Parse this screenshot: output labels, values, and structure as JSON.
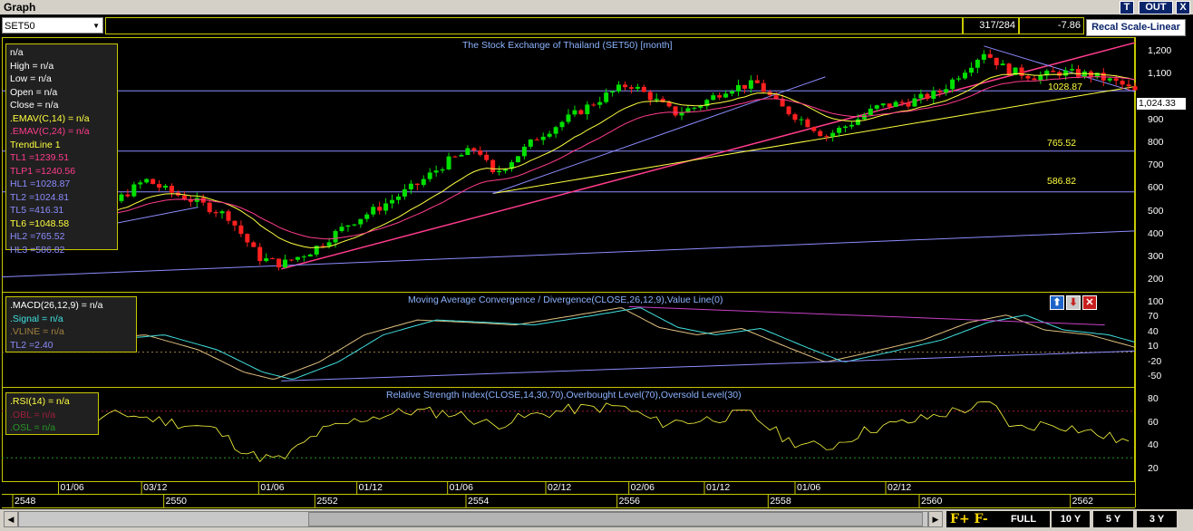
{
  "window": {
    "title": "Graph",
    "buttons": [
      "T",
      "OUT",
      "X"
    ]
  },
  "toolbar": {
    "symbol": "SET50",
    "ratio": "317/284",
    "change": "-7.86",
    "recal_label": "Recal Scale-Linear"
  },
  "main_panel": {
    "title": "The Stock Exchange of Thailand (SET50) [month]",
    "info": [
      {
        "text": "n/a",
        "color": "#ffffff"
      },
      {
        "text": "High  = n/a",
        "color": "#ffffff"
      },
      {
        "text": "Low  = n/a",
        "color": "#ffffff"
      },
      {
        "text": "Open  = n/a",
        "color": "#ffffff"
      },
      {
        "text": "Close  = n/a",
        "color": "#ffffff"
      },
      {
        "text": ".EMAV(C,14)   = n/a",
        "color": "#ffff40"
      },
      {
        "text": ".EMAV(C,24)   = n/a",
        "color": "#ff3c8c"
      },
      {
        "text": "TrendLine 1",
        "color": "#ffff40"
      },
      {
        "text": "TL1 =1239.51",
        "color": "#ff3c8c"
      },
      {
        "text": "TLP1 =1240.56",
        "color": "#ff3c8c"
      },
      {
        "text": "HL1 =1028.87",
        "color": "#8c8cff"
      },
      {
        "text": "TL2 =1024.81",
        "color": "#8c8cff"
      },
      {
        "text": "TL5 =416.31",
        "color": "#8c8cff"
      },
      {
        "text": "TL6 =1048.58",
        "color": "#ffff40"
      },
      {
        "text": "HL2 =765.52",
        "color": "#8c8cff"
      },
      {
        "text": "HL3 =586.82",
        "color": "#8c8cff"
      }
    ],
    "y_ticks": [
      "1,200",
      "1,100",
      "1,024.33",
      "900",
      "800",
      "700",
      "600",
      "500",
      "400",
      "300",
      "200"
    ],
    "level_labels": [
      "1028.87",
      "765.52",
      "586.82"
    ],
    "current_price": "1,024.33"
  },
  "macd_panel": {
    "title": "Moving Average Convergence / Divergence(CLOSE,26,12,9),Value Line(0)",
    "info": [
      {
        "text": ".MACD(26,12,9)   = n/a",
        "color": "#ffffff"
      },
      {
        "text": ".Signal   = n/a",
        "color": "#40e0e0"
      },
      {
        "text": ".VLINE    = n/a",
        "color": "#a08040"
      },
      {
        "text": "TL2 =2.40",
        "color": "#8c8cff"
      }
    ],
    "y_ticks": [
      "100",
      "70",
      "40",
      "10",
      "-20",
      "-50"
    ],
    "buttons": [
      "up-arrow",
      "down-arrow",
      "close"
    ]
  },
  "rsi_panel": {
    "title": "Relative Strength Index(CLOSE,14,30,70),Overbought Level(70),Oversold Level(30)",
    "info": [
      {
        "text": ".RSI(14)   = n/a",
        "color": "#ffff40"
      },
      {
        "text": ".OBL   = n/a",
        "color": "#a01e3c"
      },
      {
        "text": ".OSL   = n/a",
        "color": "#289628"
      }
    ],
    "y_ticks": [
      "80",
      "60",
      "40",
      "20"
    ]
  },
  "x_axis": {
    "months": [
      "01/06",
      "03/12",
      "01/06",
      "01/12",
      "01/06",
      "02/12",
      "02/06",
      "01/12",
      "01/06",
      "02/12"
    ],
    "years": [
      "2548",
      "2550",
      "2552",
      "2554",
      "2556",
      "2558",
      "2560",
      "2562"
    ]
  },
  "bottom": {
    "timeframes": [
      "FULL",
      "10 Y",
      "5 Y",
      "3 Y"
    ],
    "font_buttons": [
      "F+",
      "F-"
    ]
  },
  "colors": {
    "up": "#00e000",
    "down": "#ff2020",
    "ema14": "#ffff40",
    "ema24": "#ff3c8c",
    "trend_blue": "#8c8cff",
    "trend_pink": "#ff3c8c",
    "trend_yellow": "#ffff40",
    "macd": "#e0c080",
    "signal": "#40e0e0",
    "rsi": "#ffff40"
  },
  "chart_data": {
    "type": "candlestick",
    "interval": "month",
    "x_range": [
      "2548",
      "2563"
    ],
    "ylim": [
      150,
      1260
    ],
    "close_path": [
      [
        2548.5,
        470
      ],
      [
        2549,
        490
      ],
      [
        2549.5,
        545
      ],
      [
        2549.9,
        640
      ],
      [
        2550.2,
        590
      ],
      [
        2550.6,
        540
      ],
      [
        2551.0,
        480
      ],
      [
        2551.4,
        300
      ],
      [
        2551.7,
        270
      ],
      [
        2552.1,
        330
      ],
      [
        2552.6,
        450
      ],
      [
        2553.0,
        520
      ],
      [
        2553.5,
        620
      ],
      [
        2553.9,
        720
      ],
      [
        2554.3,
        780
      ],
      [
        2554.5,
        660
      ],
      [
        2554.8,
        740
      ],
      [
        2555.1,
        830
      ],
      [
        2555.6,
        930
      ],
      [
        2556.0,
        1010
      ],
      [
        2556.3,
        1060
      ],
      [
        2556.6,
        1000
      ],
      [
        2556.9,
        930
      ],
      [
        2557.2,
        960
      ],
      [
        2557.6,
        1040
      ],
      [
        2558.0,
        1060
      ],
      [
        2558.3,
        960
      ],
      [
        2558.7,
        880
      ],
      [
        2558.9,
        830
      ],
      [
        2559.2,
        880
      ],
      [
        2559.6,
        960
      ],
      [
        2560.0,
        980
      ],
      [
        2560.4,
        1020
      ],
      [
        2560.8,
        1140
      ],
      [
        2561.0,
        1200
      ],
      [
        2561.3,
        1120
      ],
      [
        2561.7,
        1090
      ],
      [
        2562.0,
        1110
      ],
      [
        2562.4,
        1100
      ],
      [
        2562.8,
        1060
      ],
      [
        2563.0,
        1024.33
      ]
    ],
    "macd_path": [
      [
        2548.5,
        20
      ],
      [
        2549.2,
        25
      ],
      [
        2549.9,
        35
      ],
      [
        2550.6,
        5
      ],
      [
        2551.2,
        -40
      ],
      [
        2551.6,
        -55
      ],
      [
        2552.2,
        -20
      ],
      [
        2552.8,
        35
      ],
      [
        2553.5,
        65
      ],
      [
        2554.2,
        60
      ],
      [
        2554.8,
        55
      ],
      [
        2555.5,
        72
      ],
      [
        2556.2,
        90
      ],
      [
        2556.7,
        50
      ],
      [
        2557.2,
        35
      ],
      [
        2557.8,
        48
      ],
      [
        2558.4,
        10
      ],
      [
        2558.9,
        -20
      ],
      [
        2559.5,
        0
      ],
      [
        2560.2,
        25
      ],
      [
        2560.8,
        60
      ],
      [
        2561.3,
        75
      ],
      [
        2561.8,
        45
      ],
      [
        2562.4,
        35
      ],
      [
        2563.0,
        10
      ]
    ],
    "rsi_path": [
      [
        2548.5,
        55
      ],
      [
        2549.0,
        58
      ],
      [
        2549.6,
        68
      ],
      [
        2550.1,
        62
      ],
      [
        2550.8,
        55
      ],
      [
        2551.3,
        32
      ],
      [
        2551.7,
        28
      ],
      [
        2552.2,
        52
      ],
      [
        2552.8,
        64
      ],
      [
        2553.4,
        70
      ],
      [
        2554.0,
        68
      ],
      [
        2554.5,
        58
      ],
      [
        2555.0,
        66
      ],
      [
        2555.6,
        72
      ],
      [
        2556.2,
        74
      ],
      [
        2556.7,
        60
      ],
      [
        2557.2,
        62
      ],
      [
        2557.9,
        68
      ],
      [
        2558.4,
        45
      ],
      [
        2558.9,
        38
      ],
      [
        2559.5,
        55
      ],
      [
        2560.1,
        62
      ],
      [
        2560.6,
        70
      ],
      [
        2561.1,
        76
      ],
      [
        2561.4,
        55
      ],
      [
        2561.9,
        60
      ],
      [
        2562.4,
        52
      ],
      [
        2563.0,
        42
      ]
    ],
    "horizontal_levels": [
      1028.87,
      765.52,
      586.82
    ]
  }
}
